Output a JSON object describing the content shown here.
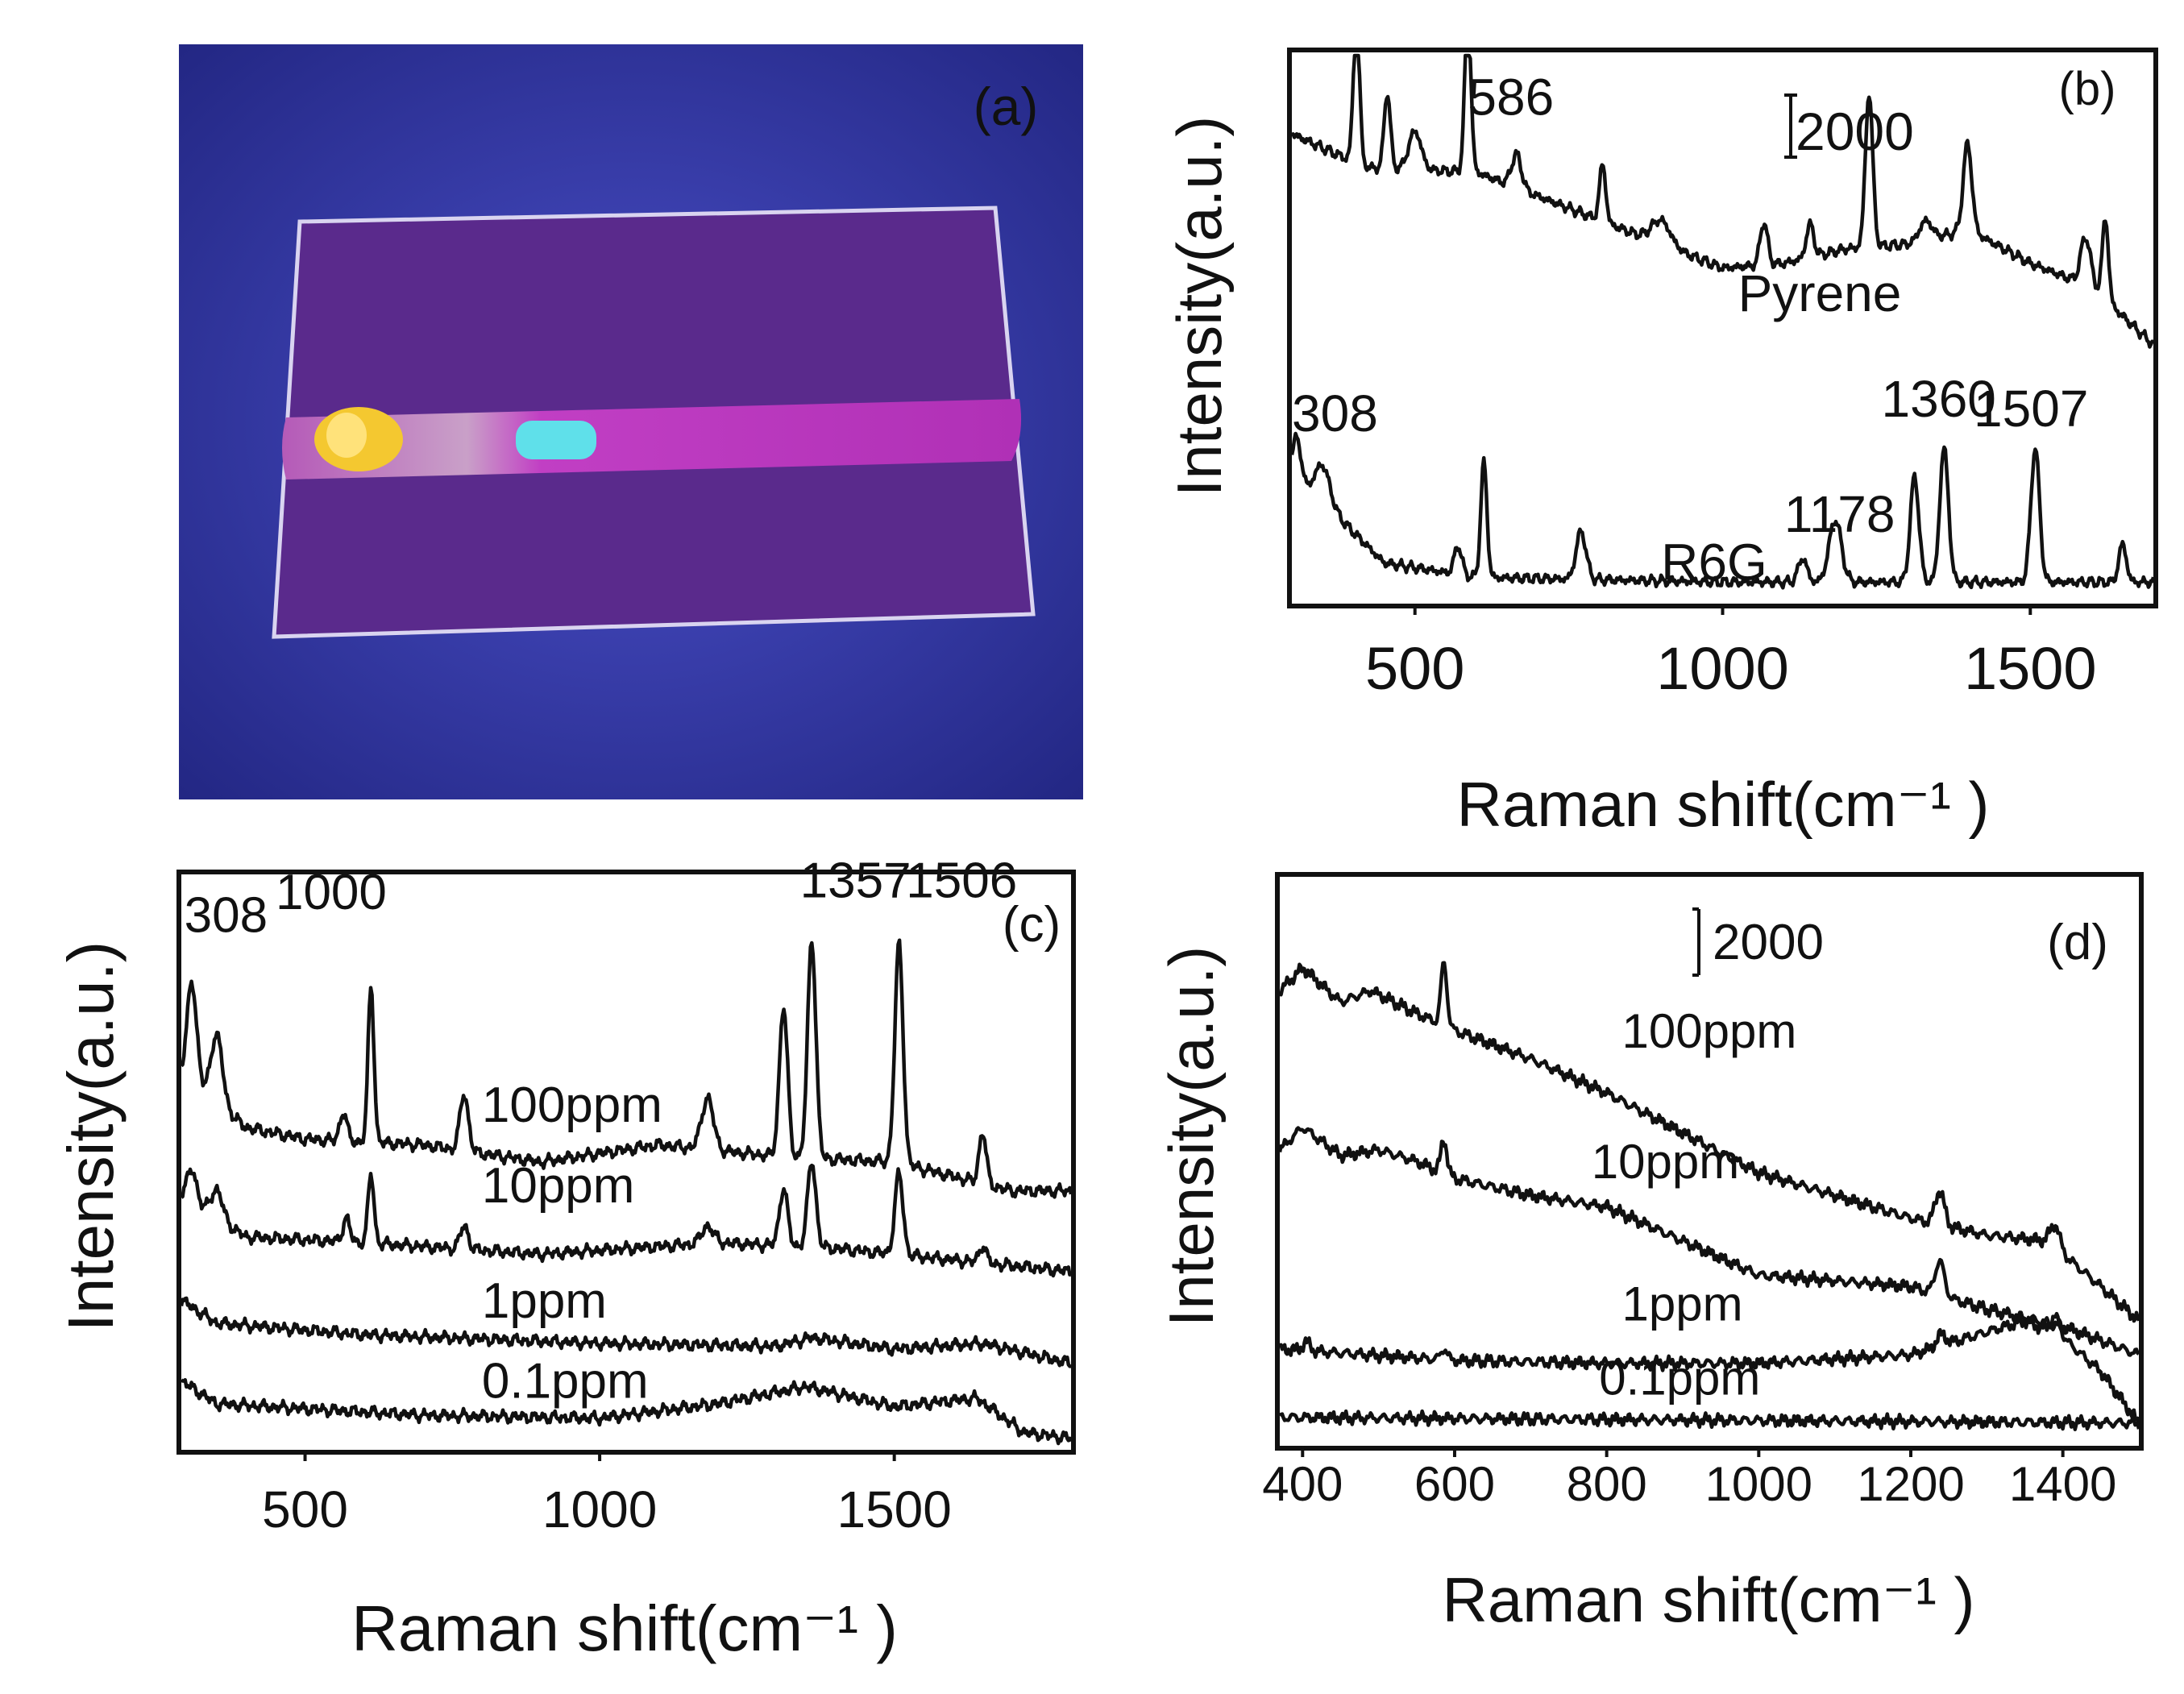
{
  "panel_a": {
    "label": "(a)",
    "colors": {
      "backdrop": "#3a3fb2",
      "backdrop_edge": "#232784",
      "glass": "#5a2a8c",
      "glass_edge": "#d9d4f0",
      "stripe": "#c13fc4",
      "spot_yellow": "#f4c830",
      "spot_cyan": "#5fe0ea"
    }
  },
  "chart_data": [
    {
      "panel": "b",
      "type": "line",
      "label": "(b)",
      "xlabel": "Raman shift(cm⁻¹ )",
      "ylabel": "Intensity(a.u.)",
      "xlim": [
        300,
        1700
      ],
      "ylim": [
        0,
        11.5
      ],
      "xticks": [
        500,
        1000,
        1500
      ],
      "scale_bar": "2000",
      "series": [
        {
          "name": "Pyrene",
          "offset": 5.2,
          "baseline": [
            [
              300,
              4.6
            ],
            [
              420,
              3.9
            ],
            [
              600,
              3.8
            ],
            [
              800,
              2.8
            ],
            [
              1000,
              1.8
            ],
            [
              1100,
              1.9
            ],
            [
              1200,
              2.2
            ],
            [
              1300,
              2.3
            ],
            [
              1400,
              2.6
            ],
            [
              1500,
              1.9
            ],
            [
              1600,
              1.4
            ],
            [
              1700,
              0.2
            ]
          ],
          "peaks": [
            [
              405,
              3.1,
              5
            ],
            [
              455,
              1.6,
              5
            ],
            [
              500,
              0.8,
              10
            ],
            [
              586,
              3.3,
              5
            ],
            [
              665,
              0.7,
              8
            ],
            [
              805,
              1.2,
              5
            ],
            [
              900,
              0.5,
              15
            ],
            [
              1067,
              0.9,
              6
            ],
            [
              1142,
              0.7,
              6
            ],
            [
              1238,
              3.2,
              6
            ],
            [
              1330,
              0.4,
              10
            ],
            [
              1398,
              1.8,
              7
            ],
            [
              1590,
              1.0,
              8
            ],
            [
              1622,
              1.7,
              5
            ]
          ]
        },
        {
          "name": "R6G",
          "offset": 0.35,
          "baseline": [
            [
              300,
              2.3
            ],
            [
              380,
              1.4
            ],
            [
              450,
              0.5
            ],
            [
              600,
              0.2
            ],
            [
              1000,
              0.1
            ],
            [
              1700,
              0.1
            ]
          ],
          "peaks": [
            [
              308,
              0.9,
              7
            ],
            [
              350,
              0.8,
              12
            ],
            [
              570,
              0.6,
              6
            ],
            [
              612,
              2.4,
              5
            ],
            [
              770,
              1.0,
              8
            ],
            [
              1130,
              0.5,
              7
            ],
            [
              1183,
              1.3,
              10
            ],
            [
              1312,
              2.2,
              7
            ],
            [
              1360,
              2.8,
              7
            ],
            [
              1508,
              2.8,
              7
            ],
            [
              1650,
              0.8,
              6
            ]
          ]
        }
      ],
      "annotations": [
        {
          "text": "586",
          "x": 586,
          "y": 10.2
        },
        {
          "text": "Pyrene",
          "x": 1025,
          "y": 6.1
        },
        {
          "text": "308",
          "x": 300,
          "y": 3.6
        },
        {
          "text": "R6G",
          "x": 900,
          "y": 0.5
        },
        {
          "text": "1178",
          "x": 1100,
          "y": 1.5
        },
        {
          "text": "1360",
          "x": 1258,
          "y": 3.9
        },
        {
          "text": "1507",
          "x": 1408,
          "y": 3.7
        }
      ]
    },
    {
      "panel": "c",
      "type": "line",
      "label": "(c)",
      "xlabel": "Raman shift(cm⁻¹ )",
      "ylabel": "Intensity(a.u.)",
      "xlim": [
        290,
        1800
      ],
      "ylim": [
        0,
        10
      ],
      "xticks": [
        500,
        1000,
        1500
      ],
      "series": [
        {
          "name": "100ppm",
          "offset": 4.5,
          "baseline": [
            [
              290,
              2.0
            ],
            [
              400,
              1.1
            ],
            [
              500,
              0.9
            ],
            [
              700,
              0.8
            ],
            [
              900,
              0.5
            ],
            [
              1100,
              0.8
            ],
            [
              1300,
              0.6
            ],
            [
              1500,
              0.5
            ],
            [
              1700,
              0.0
            ],
            [
              1800,
              0.0
            ]
          ],
          "peaks": [
            [
              308,
              1.8,
              8
            ],
            [
              350,
              1.2,
              10
            ],
            [
              565,
              0.5,
              6
            ],
            [
              612,
              2.7,
              5
            ],
            [
              770,
              1.0,
              7
            ],
            [
              1183,
              0.9,
              10
            ],
            [
              1312,
              2.6,
              7
            ],
            [
              1360,
              3.8,
              7
            ],
            [
              1508,
              3.8,
              7
            ],
            [
              1650,
              0.9,
              6
            ]
          ]
        },
        {
          "name": "10ppm",
          "offset": 3.3,
          "baseline": [
            [
              290,
              1.1
            ],
            [
              400,
              0.4
            ],
            [
              600,
              0.3
            ],
            [
              900,
              0.1
            ],
            [
              1200,
              0.3
            ],
            [
              1400,
              0.2
            ],
            [
              1700,
              -0.1
            ],
            [
              1800,
              -0.2
            ]
          ],
          "peaks": [
            [
              308,
              0.6,
              8
            ],
            [
              350,
              0.5,
              10
            ],
            [
              570,
              0.4,
              6
            ],
            [
              612,
              1.2,
              5
            ],
            [
              770,
              0.4,
              7
            ],
            [
              1183,
              0.3,
              10
            ],
            [
              1312,
              1.0,
              7
            ],
            [
              1360,
              1.5,
              7
            ],
            [
              1508,
              1.4,
              7
            ],
            [
              1650,
              0.3,
              6
            ]
          ]
        },
        {
          "name": "1ppm",
          "offset": 1.5,
          "baseline": [
            [
              290,
              1.1
            ],
            [
              350,
              0.7
            ],
            [
              600,
              0.5
            ],
            [
              1000,
              0.35
            ],
            [
              1300,
              0.3
            ],
            [
              1360,
              0.45
            ],
            [
              1500,
              0.25
            ],
            [
              1650,
              0.35
            ],
            [
              1800,
              0.0
            ]
          ],
          "peaks": []
        },
        {
          "name": "0.1ppm",
          "offset": 0.2,
          "baseline": [
            [
              290,
              1.0
            ],
            [
              350,
              0.6
            ],
            [
              700,
              0.4
            ],
            [
              1000,
              0.35
            ],
            [
              1200,
              0.6
            ],
            [
              1350,
              0.9
            ],
            [
              1500,
              0.55
            ],
            [
              1640,
              0.7
            ],
            [
              1720,
              0.1
            ],
            [
              1800,
              0.0
            ]
          ],
          "peaks": []
        }
      ],
      "annotations": [
        {
          "text": "308",
          "x": 295,
          "y": 9.0
        },
        {
          "text": "1000",
          "x": 450,
          "y": 9.4
        },
        {
          "text": "1357",
          "x": 1340,
          "y": 9.6
        },
        {
          "text": "1506",
          "x": 1520,
          "y": 9.6
        },
        {
          "text": "100ppm",
          "x": 800,
          "y": 5.7
        },
        {
          "text": "10ppm",
          "x": 800,
          "y": 4.3
        },
        {
          "text": "1ppm",
          "x": 800,
          "y": 2.3
        },
        {
          "text": "0.1ppm",
          "x": 800,
          "y": 0.9
        }
      ]
    },
    {
      "panel": "d",
      "type": "line",
      "label": "(d)",
      "xlabel": "Raman shift(cm⁻¹ )",
      "ylabel": "Intensity(a.u.)",
      "xlim": [
        370,
        1500
      ],
      "ylim": [
        0,
        10
      ],
      "xticks": [
        400,
        600,
        800,
        1000,
        1200,
        1400
      ],
      "scale_bar": "2000",
      "series": [
        {
          "name": "100ppm",
          "offset": 2.8,
          "baseline": [
            [
              370,
              5.2
            ],
            [
              400,
              5.6
            ],
            [
              450,
              5.0
            ],
            [
              490,
              5.2
            ],
            [
              550,
              4.8
            ],
            [
              600,
              4.5
            ],
            [
              700,
              4.0
            ],
            [
              800,
              3.4
            ],
            [
              900,
              2.7
            ],
            [
              1000,
              2.0
            ],
            [
              1100,
              1.6
            ],
            [
              1200,
              1.2
            ],
            [
              1300,
              0.9
            ],
            [
              1380,
              0.8
            ],
            [
              1450,
              0.0
            ],
            [
              1500,
              -0.6
            ]
          ],
          "peaks": [
            [
              586,
              1.1,
              4
            ],
            [
              1238,
              0.6,
              6
            ],
            [
              1390,
              0.4,
              6
            ]
          ]
        },
        {
          "name": "10ppm",
          "offset": 2.0,
          "baseline": [
            [
              370,
              3.2
            ],
            [
              400,
              3.6
            ],
            [
              450,
              3.1
            ],
            [
              500,
              3.2
            ],
            [
              550,
              3.0
            ],
            [
              600,
              2.7
            ],
            [
              700,
              2.4
            ],
            [
              800,
              2.2
            ],
            [
              900,
              1.6
            ],
            [
              1000,
              1.0
            ],
            [
              1100,
              0.9
            ],
            [
              1200,
              0.8
            ],
            [
              1300,
              0.4
            ],
            [
              1400,
              0.1
            ],
            [
              1500,
              -0.4
            ]
          ],
          "peaks": [
            [
              586,
              0.6,
              4
            ],
            [
              1238,
              0.6,
              6
            ]
          ]
        },
        {
          "name": "1ppm",
          "offset": 0.5,
          "baseline": [
            [
              370,
              1.2
            ],
            [
              600,
              1.0
            ],
            [
              800,
              0.95
            ],
            [
              1000,
              0.95
            ],
            [
              1200,
              1.1
            ],
            [
              1300,
              1.5
            ],
            [
              1350,
              1.7
            ],
            [
              1400,
              1.4
            ],
            [
              1450,
              0.8
            ],
            [
              1500,
              -0.1
            ]
          ],
          "peaks": [
            [
              405,
              0.15,
              5
            ],
            [
              586,
              0.2,
              4
            ],
            [
              1240,
              0.2,
              6
            ],
            [
              1390,
              0.3,
              6
            ]
          ]
        },
        {
          "name": "0.1ppm",
          "offset": 0.0,
          "baseline": [
            [
              370,
              0.5
            ],
            [
              1500,
              0.4
            ]
          ],
          "peaks": []
        }
      ],
      "annotations": [
        {
          "text": "100ppm",
          "x": 820,
          "y": 7.0
        },
        {
          "text": "10ppm",
          "x": 780,
          "y": 4.7
        },
        {
          "text": "1ppm",
          "x": 820,
          "y": 2.2
        },
        {
          "text": "0.1ppm",
          "x": 790,
          "y": 0.9
        }
      ]
    }
  ]
}
